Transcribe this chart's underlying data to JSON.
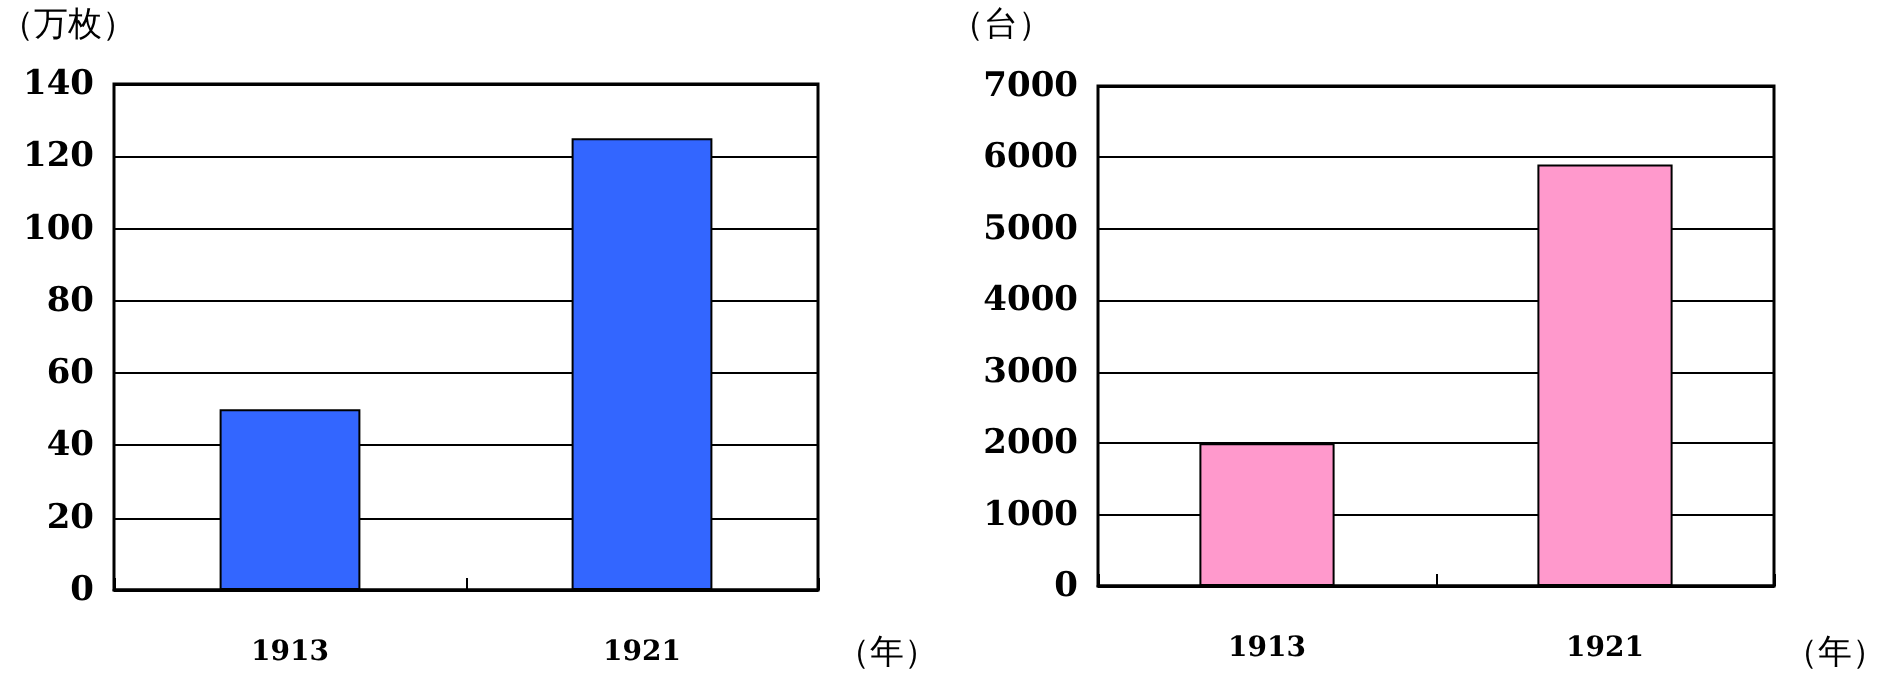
{
  "chart_data": [
    {
      "type": "bar",
      "ylabel": "（万枚）",
      "xlabel": "（年）",
      "categories": [
        "1913",
        "1921"
      ],
      "series": [
        {
          "color": "#3366ff",
          "values": [
            50,
            125
          ]
        }
      ],
      "ylim": [
        0,
        140
      ],
      "yticks": [
        0,
        20,
        40,
        60,
        80,
        100,
        120,
        140
      ],
      "grid": "y"
    },
    {
      "type": "bar",
      "ylabel": "（台）",
      "xlabel": "（年）",
      "categories": [
        "1913",
        "1921"
      ],
      "series": [
        {
          "color": "#ff99cc",
          "values": [
            2000,
            5900
          ]
        }
      ],
      "ylim": [
        0,
        7000
      ],
      "yticks": [
        0,
        1000,
        2000,
        3000,
        4000,
        5000,
        6000,
        7000
      ],
      "grid": "y"
    }
  ]
}
